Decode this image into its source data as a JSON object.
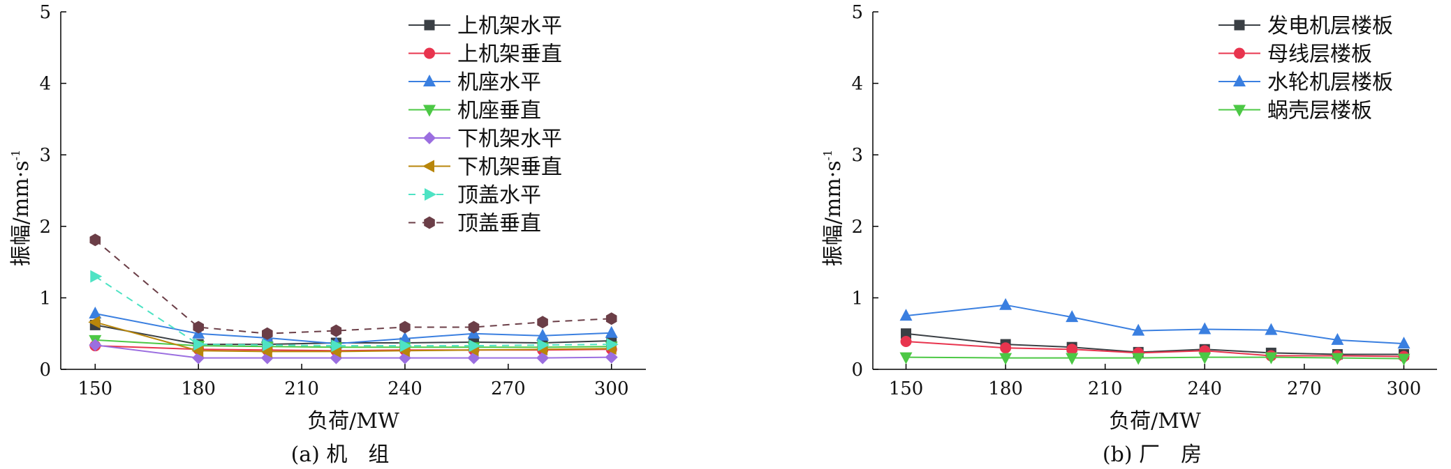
{
  "chart_data": [
    {
      "type": "line",
      "caption": "(a) 机　组",
      "xlabel": "负荷/MW",
      "ylabel": "振幅/mm·s",
      "ylabel_sup": "-1",
      "xlim": [
        140,
        310
      ],
      "ylim": [
        0,
        5
      ],
      "xticks": [
        150,
        180,
        210,
        240,
        270,
        300
      ],
      "yticks": [
        0,
        1,
        2,
        3,
        4,
        5
      ],
      "legend_position": "top-right",
      "x": [
        150,
        180,
        200,
        220,
        240,
        260,
        280,
        300
      ],
      "series": [
        {
          "name": "上机架水平",
          "color": "#3a3f44",
          "marker": "square",
          "dash": false,
          "values": [
            0.62,
            0.35,
            0.35,
            0.37,
            0.37,
            0.38,
            0.37,
            0.4
          ]
        },
        {
          "name": "上机架垂直",
          "color": "#e8344e",
          "marker": "circle",
          "dash": false,
          "values": [
            0.33,
            0.28,
            0.27,
            0.26,
            0.27,
            0.27,
            0.27,
            0.28
          ]
        },
        {
          "name": "机座水平",
          "color": "#3a7fe0",
          "marker": "triangle-up",
          "dash": false,
          "values": [
            0.78,
            0.5,
            0.44,
            0.36,
            0.43,
            0.5,
            0.47,
            0.51
          ]
        },
        {
          "name": "机座垂直",
          "color": "#4cc845",
          "marker": "triangle-down",
          "dash": false,
          "values": [
            0.41,
            0.33,
            0.32,
            0.31,
            0.31,
            0.31,
            0.31,
            0.32
          ]
        },
        {
          "name": "下机架水平",
          "color": "#9b6ee0",
          "marker": "diamond",
          "dash": false,
          "values": [
            0.34,
            0.16,
            0.16,
            0.16,
            0.16,
            0.16,
            0.16,
            0.17
          ]
        },
        {
          "name": "下机架垂直",
          "color": "#b8860b",
          "marker": "triangle-left",
          "dash": false,
          "values": [
            0.66,
            0.26,
            0.25,
            0.25,
            0.26,
            0.27,
            0.28,
            0.29
          ]
        },
        {
          "name": "顶盖水平",
          "color": "#4ee3c4",
          "marker": "triangle-right",
          "dash": true,
          "values": [
            1.3,
            0.35,
            0.34,
            0.33,
            0.33,
            0.33,
            0.34,
            0.35
          ]
        },
        {
          "name": "顶盖垂直",
          "color": "#6b3e47",
          "marker": "hexagon",
          "dash": true,
          "values": [
            1.81,
            0.59,
            0.5,
            0.54,
            0.59,
            0.59,
            0.66,
            0.71
          ]
        }
      ]
    },
    {
      "type": "line",
      "caption": "(b) 厂　房",
      "xlabel": "负荷/MW",
      "ylabel": "振幅/mm·s",
      "ylabel_sup": "-1",
      "xlim": [
        140,
        310
      ],
      "ylim": [
        0,
        5
      ],
      "xticks": [
        150,
        180,
        210,
        240,
        270,
        300
      ],
      "yticks": [
        0,
        1,
        2,
        3,
        4,
        5
      ],
      "legend_position": "top-right",
      "x": [
        150,
        180,
        200,
        220,
        240,
        260,
        280,
        300
      ],
      "series": [
        {
          "name": "发电机层楼板",
          "color": "#3a3f44",
          "marker": "square",
          "dash": false,
          "values": [
            0.5,
            0.35,
            0.31,
            0.24,
            0.28,
            0.23,
            0.21,
            0.21
          ]
        },
        {
          "name": "母线层楼板",
          "color": "#e8344e",
          "marker": "circle",
          "dash": false,
          "values": [
            0.39,
            0.3,
            0.28,
            0.23,
            0.26,
            0.19,
            0.19,
            0.18
          ]
        },
        {
          "name": "水轮机层楼板",
          "color": "#3a7fe0",
          "marker": "triangle-up",
          "dash": false,
          "values": [
            0.75,
            0.9,
            0.73,
            0.54,
            0.56,
            0.55,
            0.41,
            0.36
          ]
        },
        {
          "name": "蜗壳层楼板",
          "color": "#4cc845",
          "marker": "triangle-down",
          "dash": false,
          "values": [
            0.17,
            0.16,
            0.16,
            0.16,
            0.17,
            0.17,
            0.16,
            0.15
          ]
        }
      ]
    }
  ]
}
